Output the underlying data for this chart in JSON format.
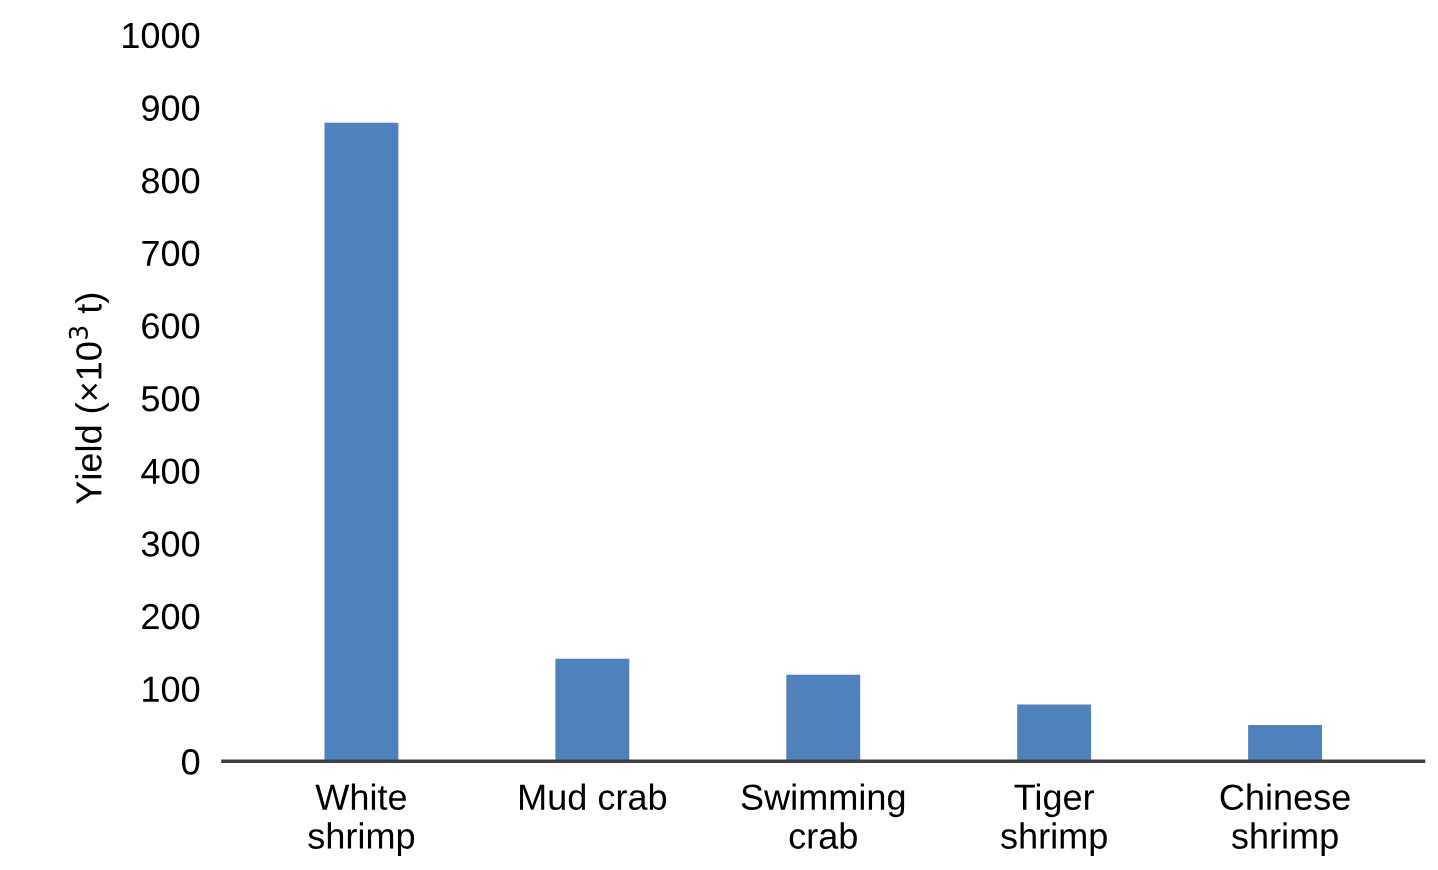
{
  "chart_data": {
    "type": "bar",
    "ylabel": "Yield (×10$^{3}$ t)",
    "categories": [
      "White\nshrimp",
      "Mud crab",
      "Swimming\ncrab",
      "Tiger\nshrimp",
      "Chinese\nshrimp"
    ],
    "values": [
      879,
      141,
      119,
      78,
      50
    ],
    "color": "#4f81bd",
    "ylim": [
      0,
      1000
    ],
    "yticks": [
      0,
      100,
      200,
      300,
      400,
      500,
      600,
      700,
      800,
      900,
      1000
    ],
    "grid": false
  }
}
